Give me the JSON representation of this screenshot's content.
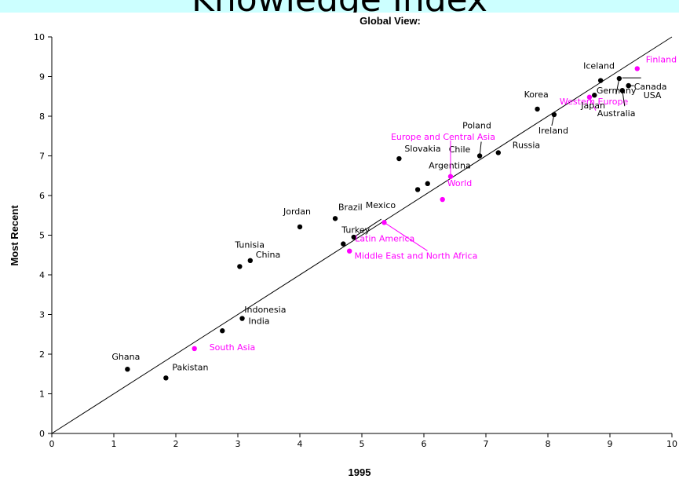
{
  "banner": {
    "title": "Knowledge Index"
  },
  "chart_data": {
    "type": "scatter",
    "title": "Global View:",
    "xlabel": "1995",
    "ylabel": "Most Recent",
    "xlim": [
      0,
      10
    ],
    "ylim": [
      0,
      10
    ],
    "xticks": [
      "0",
      "1",
      "2",
      "3",
      "4",
      "5",
      "6",
      "7",
      "8",
      "9",
      "10"
    ],
    "yticks": [
      "0",
      "1",
      "2",
      "3",
      "4",
      "5",
      "6",
      "7",
      "8",
      "9",
      "10"
    ],
    "grid": false,
    "reference_line": {
      "from": [
        0,
        0
      ],
      "to": [
        10,
        10
      ]
    },
    "colors": {
      "country": "#000000",
      "region": "#ff00ff"
    },
    "points": [
      {
        "label": "Ghana",
        "x": 1.22,
        "y": 1.62,
        "kind": "country"
      },
      {
        "label": "Pakistan",
        "x": 1.84,
        "y": 1.4,
        "kind": "country"
      },
      {
        "label": "South Asia",
        "x": 2.3,
        "y": 2.14,
        "kind": "region"
      },
      {
        "label": "India",
        "x": 3.07,
        "y": 2.9,
        "kind": "country"
      },
      {
        "label": "Indonesia",
        "x": 2.75,
        "y": 2.59,
        "kind": "country"
      },
      {
        "label": "Tunisia",
        "x": 3.03,
        "y": 4.21,
        "kind": "country"
      },
      {
        "label": "China",
        "x": 3.2,
        "y": 4.36,
        "kind": "country"
      },
      {
        "label": "Jordan",
        "x": 4.0,
        "y": 5.21,
        "kind": "country"
      },
      {
        "label": "Brazil",
        "x": 4.57,
        "y": 5.42,
        "kind": "country"
      },
      {
        "label": "Turkey",
        "x": 4.7,
        "y": 4.78,
        "kind": "country"
      },
      {
        "label": "Mexico",
        "x": 4.87,
        "y": 4.95,
        "kind": "country"
      },
      {
        "label": "Latin America",
        "x": 4.8,
        "y": 4.6,
        "kind": "region"
      },
      {
        "label": "Middle East and North Africa",
        "x": 5.36,
        "y": 5.32,
        "kind": "region"
      },
      {
        "label": "Slovakia",
        "x": 5.6,
        "y": 6.93,
        "kind": "country"
      },
      {
        "label": "Argentina",
        "x": 5.9,
        "y": 6.15,
        "kind": "country"
      },
      {
        "label": "Chile",
        "x": 6.06,
        "y": 6.3,
        "kind": "country"
      },
      {
        "label": "World",
        "x": 6.3,
        "y": 5.9,
        "kind": "region"
      },
      {
        "label": "Europe and Central Asia",
        "x": 6.43,
        "y": 6.48,
        "kind": "region"
      },
      {
        "label": "Poland",
        "x": 6.9,
        "y": 7.0,
        "kind": "country"
      },
      {
        "label": "Russia",
        "x": 7.2,
        "y": 7.08,
        "kind": "country"
      },
      {
        "label": "Korea",
        "x": 7.83,
        "y": 8.18,
        "kind": "country"
      },
      {
        "label": "Ireland",
        "x": 8.1,
        "y": 8.04,
        "kind": "country"
      },
      {
        "label": "Western Europe",
        "x": 8.67,
        "y": 8.48,
        "kind": "region"
      },
      {
        "label": "Japan",
        "x": 8.75,
        "y": 8.53,
        "kind": "country"
      },
      {
        "label": "Iceland",
        "x": 8.85,
        "y": 8.9,
        "kind": "country"
      },
      {
        "label": "Germany",
        "x": 9.15,
        "y": 8.95,
        "kind": "country"
      },
      {
        "label": "Australia",
        "x": 9.2,
        "y": 8.65,
        "kind": "country"
      },
      {
        "label": "Canada",
        "x": 9.3,
        "y": 8.77,
        "kind": "country"
      },
      {
        "label": "USA",
        "x": 9.3,
        "y": 8.77,
        "kind": "country"
      },
      {
        "label": "Finland",
        "x": 9.44,
        "y": 9.2,
        "kind": "region"
      }
    ]
  }
}
